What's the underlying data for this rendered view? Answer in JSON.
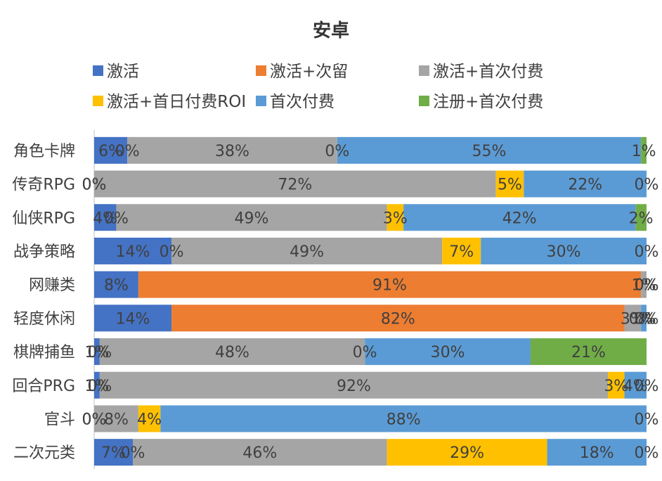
{
  "chart_data": {
    "type": "bar",
    "orientation": "horizontal",
    "stacked": "percent",
    "title": "安卓",
    "xlabel": "",
    "ylabel": "",
    "legend_position": "top",
    "grid": false,
    "categories": [
      "角色卡牌",
      "传奇RPG",
      "仙侠RPG",
      "战争策略",
      "网赚类",
      "轻度休闲",
      "棋牌捕鱼",
      "回合PRG",
      "官斗",
      "二次元类"
    ],
    "series": [
      {
        "name": "激活",
        "color": "#4472c4",
        "values": [
          6,
          0,
          4,
          14,
          8,
          14,
          1,
          1,
          0,
          7
        ],
        "labels": [
          "6%",
          "0%",
          "4%",
          "14%",
          "8%",
          "14%",
          "1%",
          "1%",
          "0%",
          "7%"
        ]
      },
      {
        "name": "激活+次留",
        "color": "#ed7d31",
        "values": [
          0,
          0,
          0,
          0,
          91,
          82,
          0,
          0,
          0,
          0
        ],
        "labels": [
          "0%",
          "0%",
          "0%",
          "0%",
          "91%",
          "82%",
          "0%",
          "0%",
          "0%",
          "0%"
        ]
      },
      {
        "name": "激活+首次付费",
        "color": "#a5a5a5",
        "values": [
          38,
          72,
          49,
          49,
          1,
          3,
          48,
          92,
          8,
          46
        ],
        "labels": [
          "38%",
          "72%",
          "49%",
          "49%",
          "1%",
          "3%",
          "48%",
          "92%",
          "8%",
          "46%"
        ]
      },
      {
        "name": "激活+首日付费ROI",
        "color": "#ffc000",
        "values": [
          0,
          5,
          3,
          7,
          0,
          0,
          0,
          3,
          4,
          29
        ],
        "labels": [
          "0%",
          "5%",
          "3%",
          "7%",
          "0%",
          "0%",
          "0%",
          "3%",
          "4%",
          "29%"
        ]
      },
      {
        "name": "首次付费",
        "color": "#5b9bd5",
        "values": [
          55,
          22,
          42,
          30,
          0,
          1,
          30,
          4,
          88,
          18
        ],
        "labels": [
          "55%",
          "22%",
          "42%",
          "30%",
          "0%",
          "1%",
          "30%",
          "4%",
          "88%",
          "18%"
        ]
      },
      {
        "name": "注册+首次付费",
        "color": "#70ad47",
        "values": [
          1,
          0,
          2,
          0,
          0,
          0,
          21,
          0,
          0,
          0
        ],
        "labels": [
          "1%",
          "0%",
          "2%",
          "0%",
          "0%",
          "0%",
          "21%",
          "0%",
          "0%",
          "0%"
        ]
      }
    ]
  }
}
